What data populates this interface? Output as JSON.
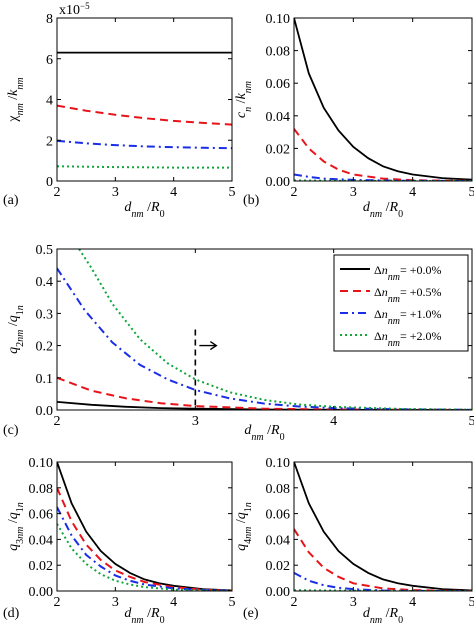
{
  "colors": {
    "solid": "#000000",
    "dashed": "#e8141a",
    "dashdot": "#1a2ee8",
    "dotted": "#10a63a"
  },
  "legend": [
    {
      "label": "Δn_nm= +0.0%",
      "style": "solid"
    },
    {
      "label": "Δn_nm= +0.5%",
      "style": "dashed"
    },
    {
      "label": "Δn_nm= +1.0%",
      "style": "dashdot"
    },
    {
      "label": "Δn_nm= +2.0%",
      "style": "dotted"
    }
  ],
  "chart_data": [
    {
      "panel": "(a)",
      "type": "line",
      "ylabel": "χ_nm /k_nm",
      "xlabel": "d_nm /R_0",
      "y_scale_note": "x10^-5",
      "xlim": [
        2,
        5
      ],
      "ylim": [
        0,
        8
      ],
      "xticks": [
        2,
        3,
        4,
        5
      ],
      "yticks": [
        0,
        2,
        4,
        6,
        8
      ],
      "series": [
        {
          "name": "Δn_nm= +0.0%",
          "style": "solid",
          "x": [
            2,
            2.5,
            3,
            3.5,
            4,
            4.5,
            5
          ],
          "y": [
            6.3,
            6.3,
            6.3,
            6.3,
            6.3,
            6.3,
            6.3
          ]
        },
        {
          "name": "Δn_nm= +0.5%",
          "style": "dashed",
          "x": [
            2,
            2.5,
            3,
            3.5,
            4,
            4.5,
            5
          ],
          "y": [
            3.7,
            3.45,
            3.25,
            3.08,
            2.95,
            2.85,
            2.77
          ]
        },
        {
          "name": "Δn_nm= +1.0%",
          "style": "dashdot",
          "x": [
            2,
            2.5,
            3,
            3.5,
            4,
            4.5,
            5
          ],
          "y": [
            1.97,
            1.85,
            1.76,
            1.7,
            1.66,
            1.63,
            1.61
          ]
        },
        {
          "name": "Δn_nm= +2.0%",
          "style": "dotted",
          "x": [
            2,
            2.5,
            3,
            3.5,
            4,
            4.5,
            5
          ],
          "y": [
            0.72,
            0.7,
            0.68,
            0.67,
            0.66,
            0.66,
            0.66
          ]
        }
      ]
    },
    {
      "panel": "(b)",
      "type": "line",
      "ylabel": "c_n /k_nm",
      "xlabel": "d_nm /R_0",
      "xlim": [
        2,
        5
      ],
      "ylim": [
        0,
        0.1
      ],
      "xticks": [
        2,
        3,
        4,
        5
      ],
      "yticks": [
        0,
        0.02,
        0.04,
        0.06,
        0.08,
        0.1
      ],
      "ytick_labels": [
        "0.00",
        "0.02",
        "0.04",
        "0.06",
        "0.08",
        "0.10"
      ],
      "series": [
        {
          "name": "Δn_nm= +0.0%",
          "style": "solid",
          "x": [
            2,
            2.25,
            2.5,
            2.75,
            3,
            3.25,
            3.5,
            3.75,
            4,
            4.5,
            5
          ],
          "y": [
            0.1,
            0.066,
            0.045,
            0.031,
            0.021,
            0.014,
            0.009,
            0.006,
            0.004,
            0.0018,
            0.0008
          ]
        },
        {
          "name": "Δn_nm= +0.5%",
          "style": "dashed",
          "x": [
            2,
            2.25,
            2.5,
            2.75,
            3,
            3.5,
            4,
            4.5,
            5
          ],
          "y": [
            0.032,
            0.02,
            0.012,
            0.007,
            0.004,
            0.0015,
            0.0005,
            0.0002,
            0.0001
          ]
        },
        {
          "name": "Δn_nm= +1.0%",
          "style": "dashdot",
          "x": [
            2,
            2.25,
            2.5,
            3,
            3.5,
            4,
            5
          ],
          "y": [
            0.004,
            0.0025,
            0.0015,
            0.0007,
            0.0003,
            0.0001,
            0.0
          ]
        },
        {
          "name": "Δn_nm= +2.0%",
          "style": "dotted",
          "x": [
            2,
            3,
            4,
            5
          ],
          "y": [
            0.0003,
            0.0001,
            0.0,
            0.0
          ]
        }
      ]
    },
    {
      "panel": "(c)",
      "type": "line",
      "ylabel": "q_2nm /q_1n",
      "xlabel": "d_nm /R_0",
      "xlim": [
        2,
        5
      ],
      "ylim": [
        0,
        0.5
      ],
      "xticks": [
        2,
        3,
        4,
        5
      ],
      "yticks": [
        0,
        0.1,
        0.2,
        0.3,
        0.4,
        0.5
      ],
      "ytick_labels": [
        "0.0",
        "0.1",
        "0.2",
        "0.3",
        "0.4",
        "0.5"
      ],
      "marker_x": 3,
      "series": [
        {
          "name": "Δn_nm= +0.0%",
          "style": "solid",
          "x": [
            2,
            2.25,
            2.5,
            2.75,
            3,
            3.5,
            4,
            5
          ],
          "y": [
            0.025,
            0.016,
            0.01,
            0.006,
            0.004,
            0.0015,
            0.0006,
            0.0001
          ]
        },
        {
          "name": "Δn_nm= +0.5%",
          "style": "dashed",
          "x": [
            2,
            2.25,
            2.5,
            2.75,
            3,
            3.5,
            4,
            5
          ],
          "y": [
            0.1,
            0.06,
            0.036,
            0.021,
            0.012,
            0.004,
            0.0015,
            0.0002
          ]
        },
        {
          "name": "Δn_nm= +1.0%",
          "style": "dashdot",
          "x": [
            2,
            2.2,
            2.4,
            2.6,
            2.8,
            3,
            3.25,
            3.5,
            3.75,
            4,
            4.5,
            5
          ],
          "y": [
            0.44,
            0.31,
            0.21,
            0.14,
            0.095,
            0.062,
            0.036,
            0.02,
            0.011,
            0.006,
            0.002,
            0.0006
          ]
        },
        {
          "name": "Δn_nm= +2.0%",
          "style": "dotted",
          "x": [
            2.16,
            2.25,
            2.4,
            2.6,
            2.8,
            3,
            3.25,
            3.5,
            3.75,
            4,
            4.5,
            5
          ],
          "y": [
            0.5,
            0.44,
            0.33,
            0.22,
            0.145,
            0.095,
            0.055,
            0.031,
            0.017,
            0.01,
            0.003,
            0.001
          ]
        }
      ]
    },
    {
      "panel": "(d)",
      "type": "line",
      "ylabel": "q_3nm /q_1n",
      "xlabel": "d_nm /R_0",
      "xlim": [
        2,
        5
      ],
      "ylim": [
        0,
        0.1
      ],
      "xticks": [
        2,
        3,
        4,
        5
      ],
      "yticks": [
        0,
        0.02,
        0.04,
        0.06,
        0.08,
        0.1
      ],
      "ytick_labels": [
        "0.00",
        "0.02",
        "0.04",
        "0.06",
        "0.08",
        "0.10"
      ],
      "series": [
        {
          "name": "Δn_nm= +0.0%",
          "style": "solid",
          "x": [
            2,
            2.25,
            2.5,
            2.75,
            3,
            3.25,
            3.5,
            3.75,
            4,
            4.5,
            5
          ],
          "y": [
            0.1,
            0.068,
            0.046,
            0.031,
            0.021,
            0.014,
            0.009,
            0.006,
            0.004,
            0.0015,
            0.0005
          ]
        },
        {
          "name": "Δn_nm= +0.5%",
          "style": "dashed",
          "x": [
            2,
            2.25,
            2.5,
            2.75,
            3,
            3.25,
            3.5,
            4,
            4.5,
            5
          ],
          "y": [
            0.08,
            0.054,
            0.036,
            0.024,
            0.016,
            0.011,
            0.007,
            0.003,
            0.001,
            0.0004
          ]
        },
        {
          "name": "Δn_nm= +1.0%",
          "style": "dashdot",
          "x": [
            2,
            2.25,
            2.5,
            2.75,
            3,
            3.25,
            3.5,
            4,
            4.5,
            5
          ],
          "y": [
            0.065,
            0.043,
            0.028,
            0.019,
            0.012,
            0.008,
            0.005,
            0.002,
            0.0008,
            0.0003
          ]
        },
        {
          "name": "Δn_nm= +2.0%",
          "style": "dotted",
          "x": [
            2,
            2.25,
            2.5,
            2.75,
            3,
            3.25,
            3.5,
            4,
            4.5,
            5
          ],
          "y": [
            0.052,
            0.033,
            0.021,
            0.013,
            0.008,
            0.005,
            0.003,
            0.001,
            0.0004,
            0.0001
          ]
        }
      ]
    },
    {
      "panel": "(e)",
      "type": "line",
      "ylabel": "q_4nm /q_1n",
      "xlabel": "d_nm /R_0",
      "xlim": [
        2,
        5
      ],
      "ylim": [
        0,
        0.1
      ],
      "xticks": [
        2,
        3,
        4,
        5
      ],
      "yticks": [
        0,
        0.02,
        0.04,
        0.06,
        0.08,
        0.1
      ],
      "ytick_labels": [
        "0.00",
        "0.02",
        "0.04",
        "0.06",
        "0.08",
        "0.10"
      ],
      "series": [
        {
          "name": "Δn_nm= +0.0%",
          "style": "solid",
          "x": [
            2,
            2.25,
            2.5,
            2.75,
            3,
            3.25,
            3.5,
            3.75,
            4,
            4.5,
            5
          ],
          "y": [
            0.1,
            0.068,
            0.046,
            0.031,
            0.021,
            0.014,
            0.009,
            0.006,
            0.004,
            0.0015,
            0.0005
          ]
        },
        {
          "name": "Δn_nm= +0.5%",
          "style": "dashed",
          "x": [
            2,
            2.25,
            2.5,
            2.75,
            3,
            3.5,
            4,
            4.5,
            5
          ],
          "y": [
            0.048,
            0.03,
            0.018,
            0.011,
            0.006,
            0.002,
            0.0007,
            0.0002,
            0.0001
          ]
        },
        {
          "name": "Δn_nm= +1.0%",
          "style": "dashdot",
          "x": [
            2,
            2.25,
            2.5,
            2.75,
            3,
            3.5,
            4,
            5
          ],
          "y": [
            0.014,
            0.008,
            0.0045,
            0.0025,
            0.0014,
            0.0004,
            0.0001,
            0.0
          ]
        },
        {
          "name": "Δn_nm= +2.0%",
          "style": "dotted",
          "x": [
            2,
            3,
            4,
            5
          ],
          "y": [
            0.0006,
            0.0002,
            0.0,
            0.0
          ]
        }
      ]
    }
  ]
}
